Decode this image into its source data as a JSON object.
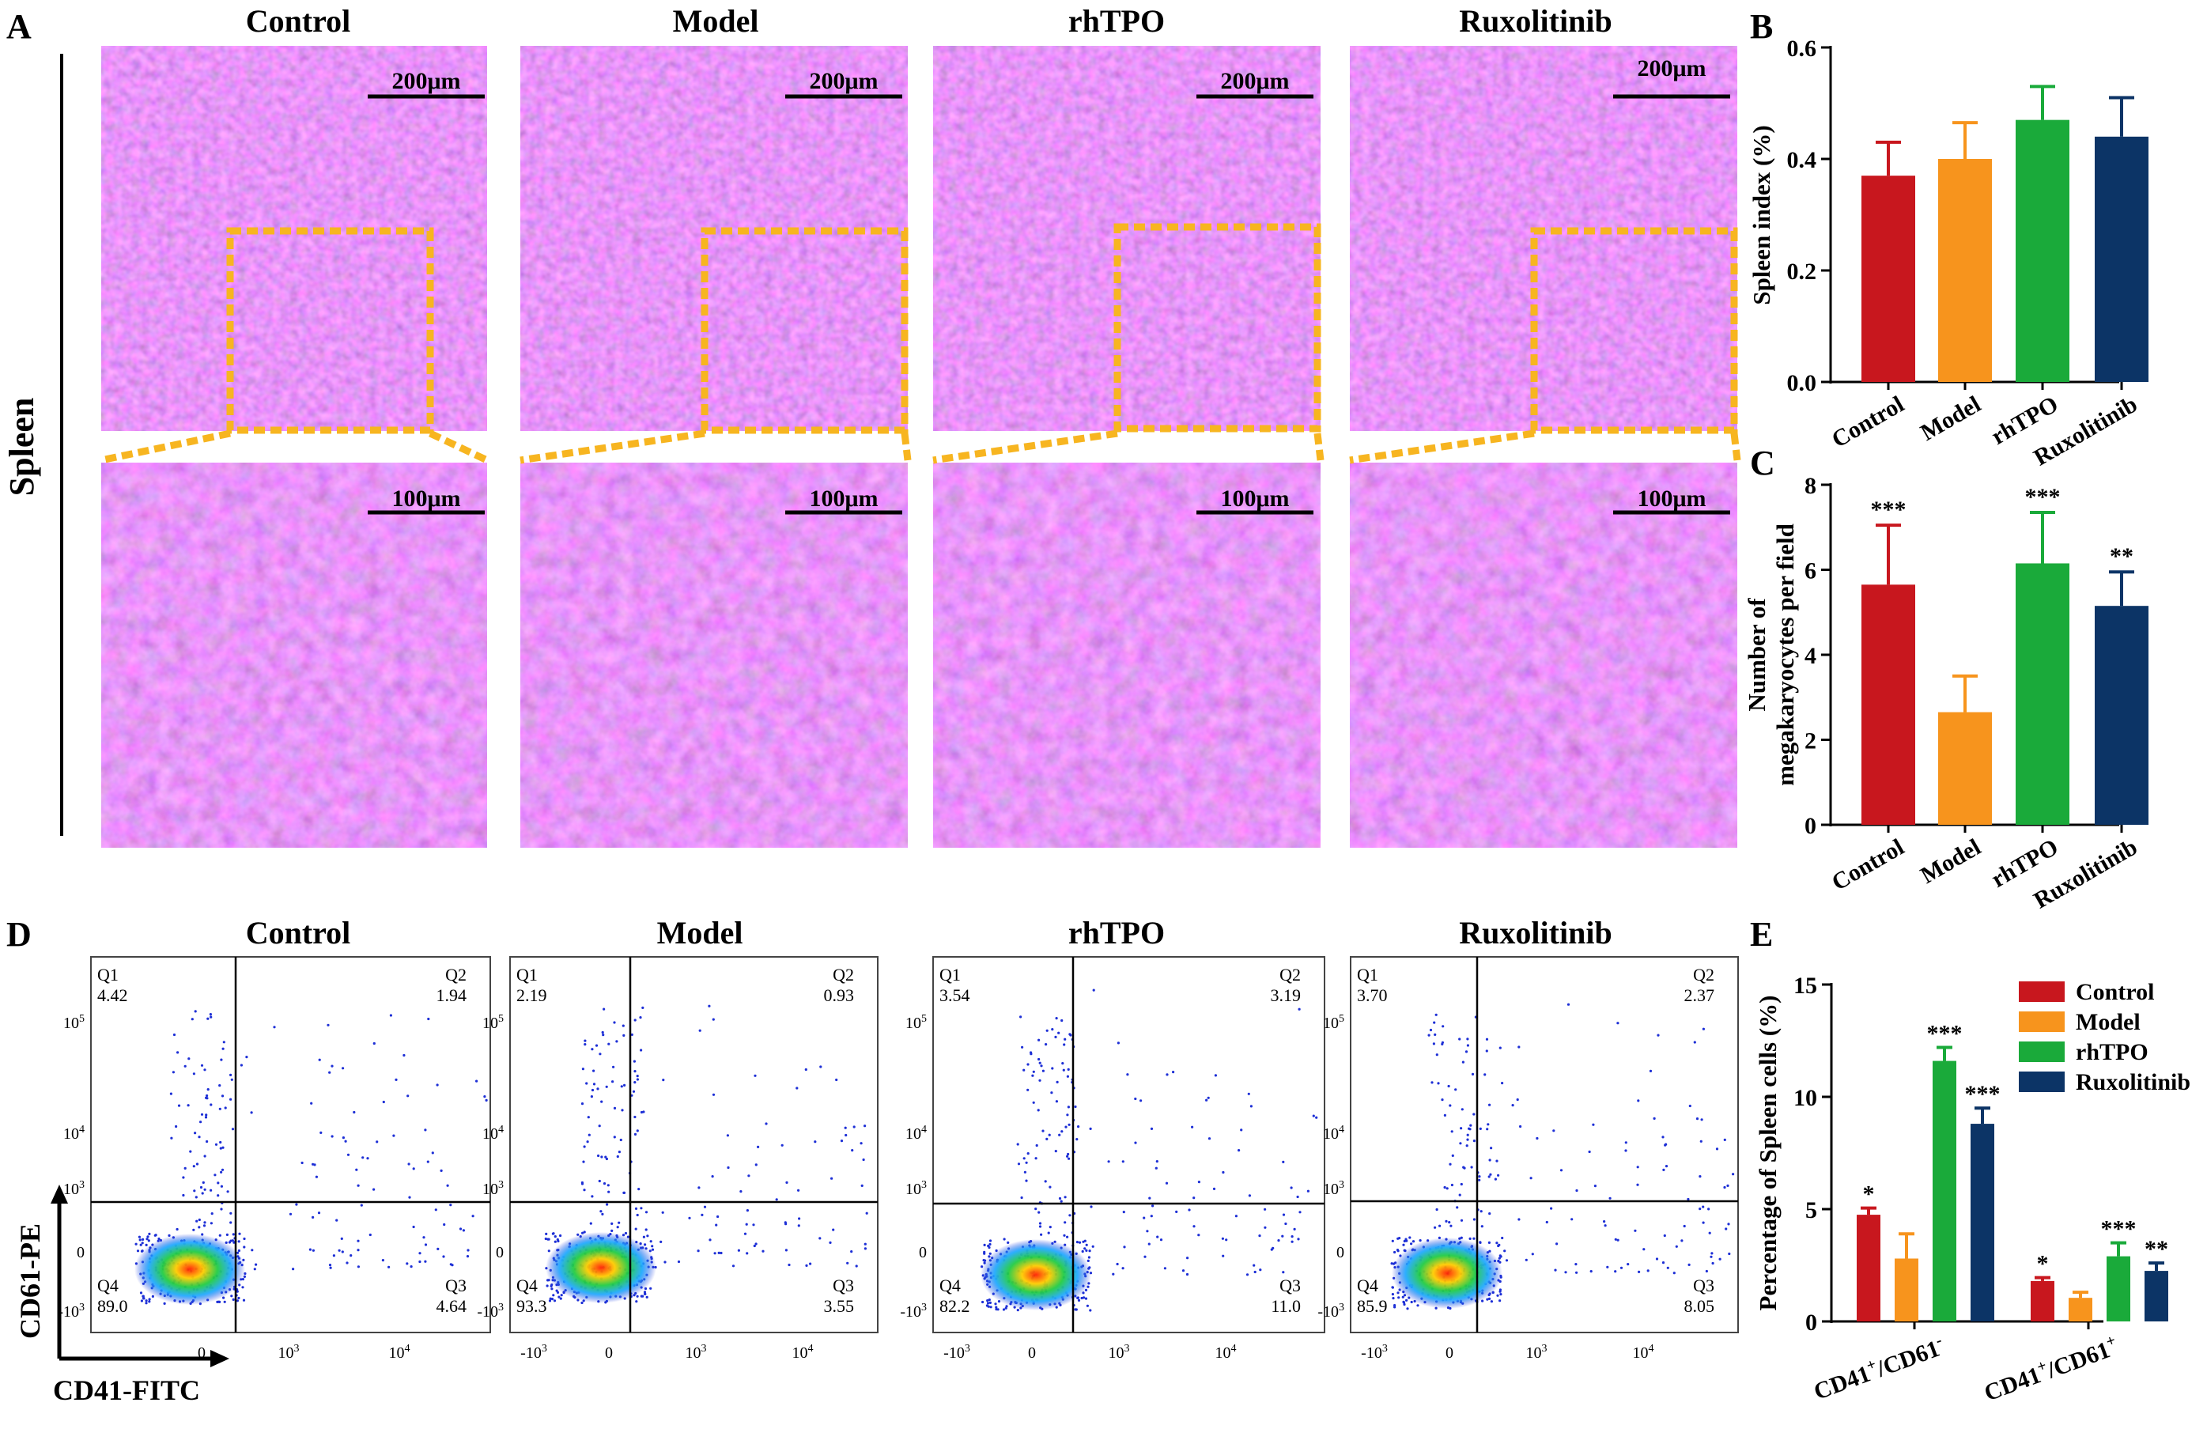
{
  "panels": {
    "A": {
      "letter": "A",
      "row_label": "Spleen",
      "columns": [
        "Control",
        "Model",
        "rhTPO",
        "Ruxolitinib"
      ],
      "scale_top": "200μm",
      "scale_bottom": "100μm"
    },
    "B": {
      "letter": "B"
    },
    "C": {
      "letter": "C"
    },
    "D": {
      "letter": "D",
      "columns": [
        "Control",
        "Model",
        "rhTPO",
        "Ruxolitinib"
      ],
      "y_axis_label": "CD61-PE",
      "x_axis_label": "CD41-FITC",
      "quadrant_names": [
        "Q1",
        "Q2",
        "Q3",
        "Q4"
      ],
      "plots": [
        {
          "group": "Control",
          "Q1": "4.42",
          "Q2": "1.94",
          "Q3": "4.64",
          "Q4": "89.0"
        },
        {
          "group": "Model",
          "Q1": "2.19",
          "Q2": "0.93",
          "Q3": "3.55",
          "Q4": "93.3"
        },
        {
          "group": "rhTPO",
          "Q1": "3.54",
          "Q2": "3.19",
          "Q3": "11.0",
          "Q4": "82.2"
        },
        {
          "group": "Ruxolitinib",
          "Q1": "3.70",
          "Q2": "2.37",
          "Q3": "8.05",
          "Q4": "85.9"
        }
      ],
      "ticks": {
        "y_first": [
          "10",
          "10",
          "10",
          "0",
          "-10"
        ],
        "y_exp": [
          "5",
          "4",
          "3",
          "",
          "3"
        ],
        "x_first": [
          "0",
          "10",
          "10"
        ],
        "x_first_exp": [
          "",
          "3",
          "4"
        ],
        "x_other": [
          "-10",
          "0",
          "10",
          "10"
        ],
        "x_other_exp": [
          "3",
          "",
          "3",
          "4"
        ]
      }
    },
    "E": {
      "letter": "E"
    }
  },
  "colors": {
    "Control": "#c8171e",
    "Model": "#f7941d",
    "rhTPO": "#1aaa3a",
    "Ruxolitinib": "#0c3466",
    "roi_box": "#f7b520"
  },
  "chart_data": [
    {
      "id": "B",
      "type": "bar",
      "categories": [
        "Control",
        "Model",
        "rhTPO",
        "Ruxolitinib"
      ],
      "values": [
        0.37,
        0.4,
        0.47,
        0.44
      ],
      "errors": [
        0.06,
        0.065,
        0.06,
        0.07
      ],
      "significance": [
        "",
        "",
        "",
        ""
      ],
      "ylabel": "Spleen index (%)",
      "ylim": [
        0,
        0.6
      ],
      "yticks": [
        "0.0",
        "0.2",
        "0.4",
        "0.6"
      ]
    },
    {
      "id": "C",
      "type": "bar",
      "categories": [
        "Control",
        "Model",
        "rhTPO",
        "Ruxolitinib"
      ],
      "values": [
        5.65,
        2.65,
        6.15,
        5.15
      ],
      "errors": [
        1.4,
        0.85,
        1.2,
        0.8
      ],
      "significance": [
        "***",
        "",
        "***",
        "**"
      ],
      "ylabel_lines": [
        "Number of",
        "megakaryocytes per field"
      ],
      "ylim": [
        0,
        8
      ],
      "yticks": [
        "0",
        "2",
        "4",
        "6",
        "8"
      ]
    },
    {
      "id": "E",
      "type": "bar",
      "groups": [
        "CD41",
        "CD41"
      ],
      "group_sup": [
        "+",
        "+"
      ],
      "group_sub2": [
        "/CD61",
        "/CD61"
      ],
      "group_sup2": [
        "-",
        "+"
      ],
      "series": [
        {
          "name": "Control",
          "values": [
            4.75,
            1.8
          ],
          "errors": [
            0.3,
            0.15
          ],
          "significance": [
            "*",
            "*"
          ]
        },
        {
          "name": "Model",
          "values": [
            2.8,
            1.05
          ],
          "errors": [
            1.1,
            0.25
          ],
          "significance": [
            "",
            ""
          ]
        },
        {
          "name": "rhTPO",
          "values": [
            11.6,
            2.9
          ],
          "errors": [
            0.6,
            0.6
          ],
          "significance": [
            "***",
            "***"
          ]
        },
        {
          "name": "Ruxolitinib",
          "values": [
            8.8,
            2.25
          ],
          "errors": [
            0.7,
            0.35
          ],
          "significance": [
            "***",
            "**"
          ]
        }
      ],
      "ylabel": "Percentage of Spleen cells (%)",
      "ylim": [
        0,
        15
      ],
      "yticks": [
        "0",
        "5",
        "10",
        "15"
      ],
      "legend_position": "top-right"
    }
  ]
}
